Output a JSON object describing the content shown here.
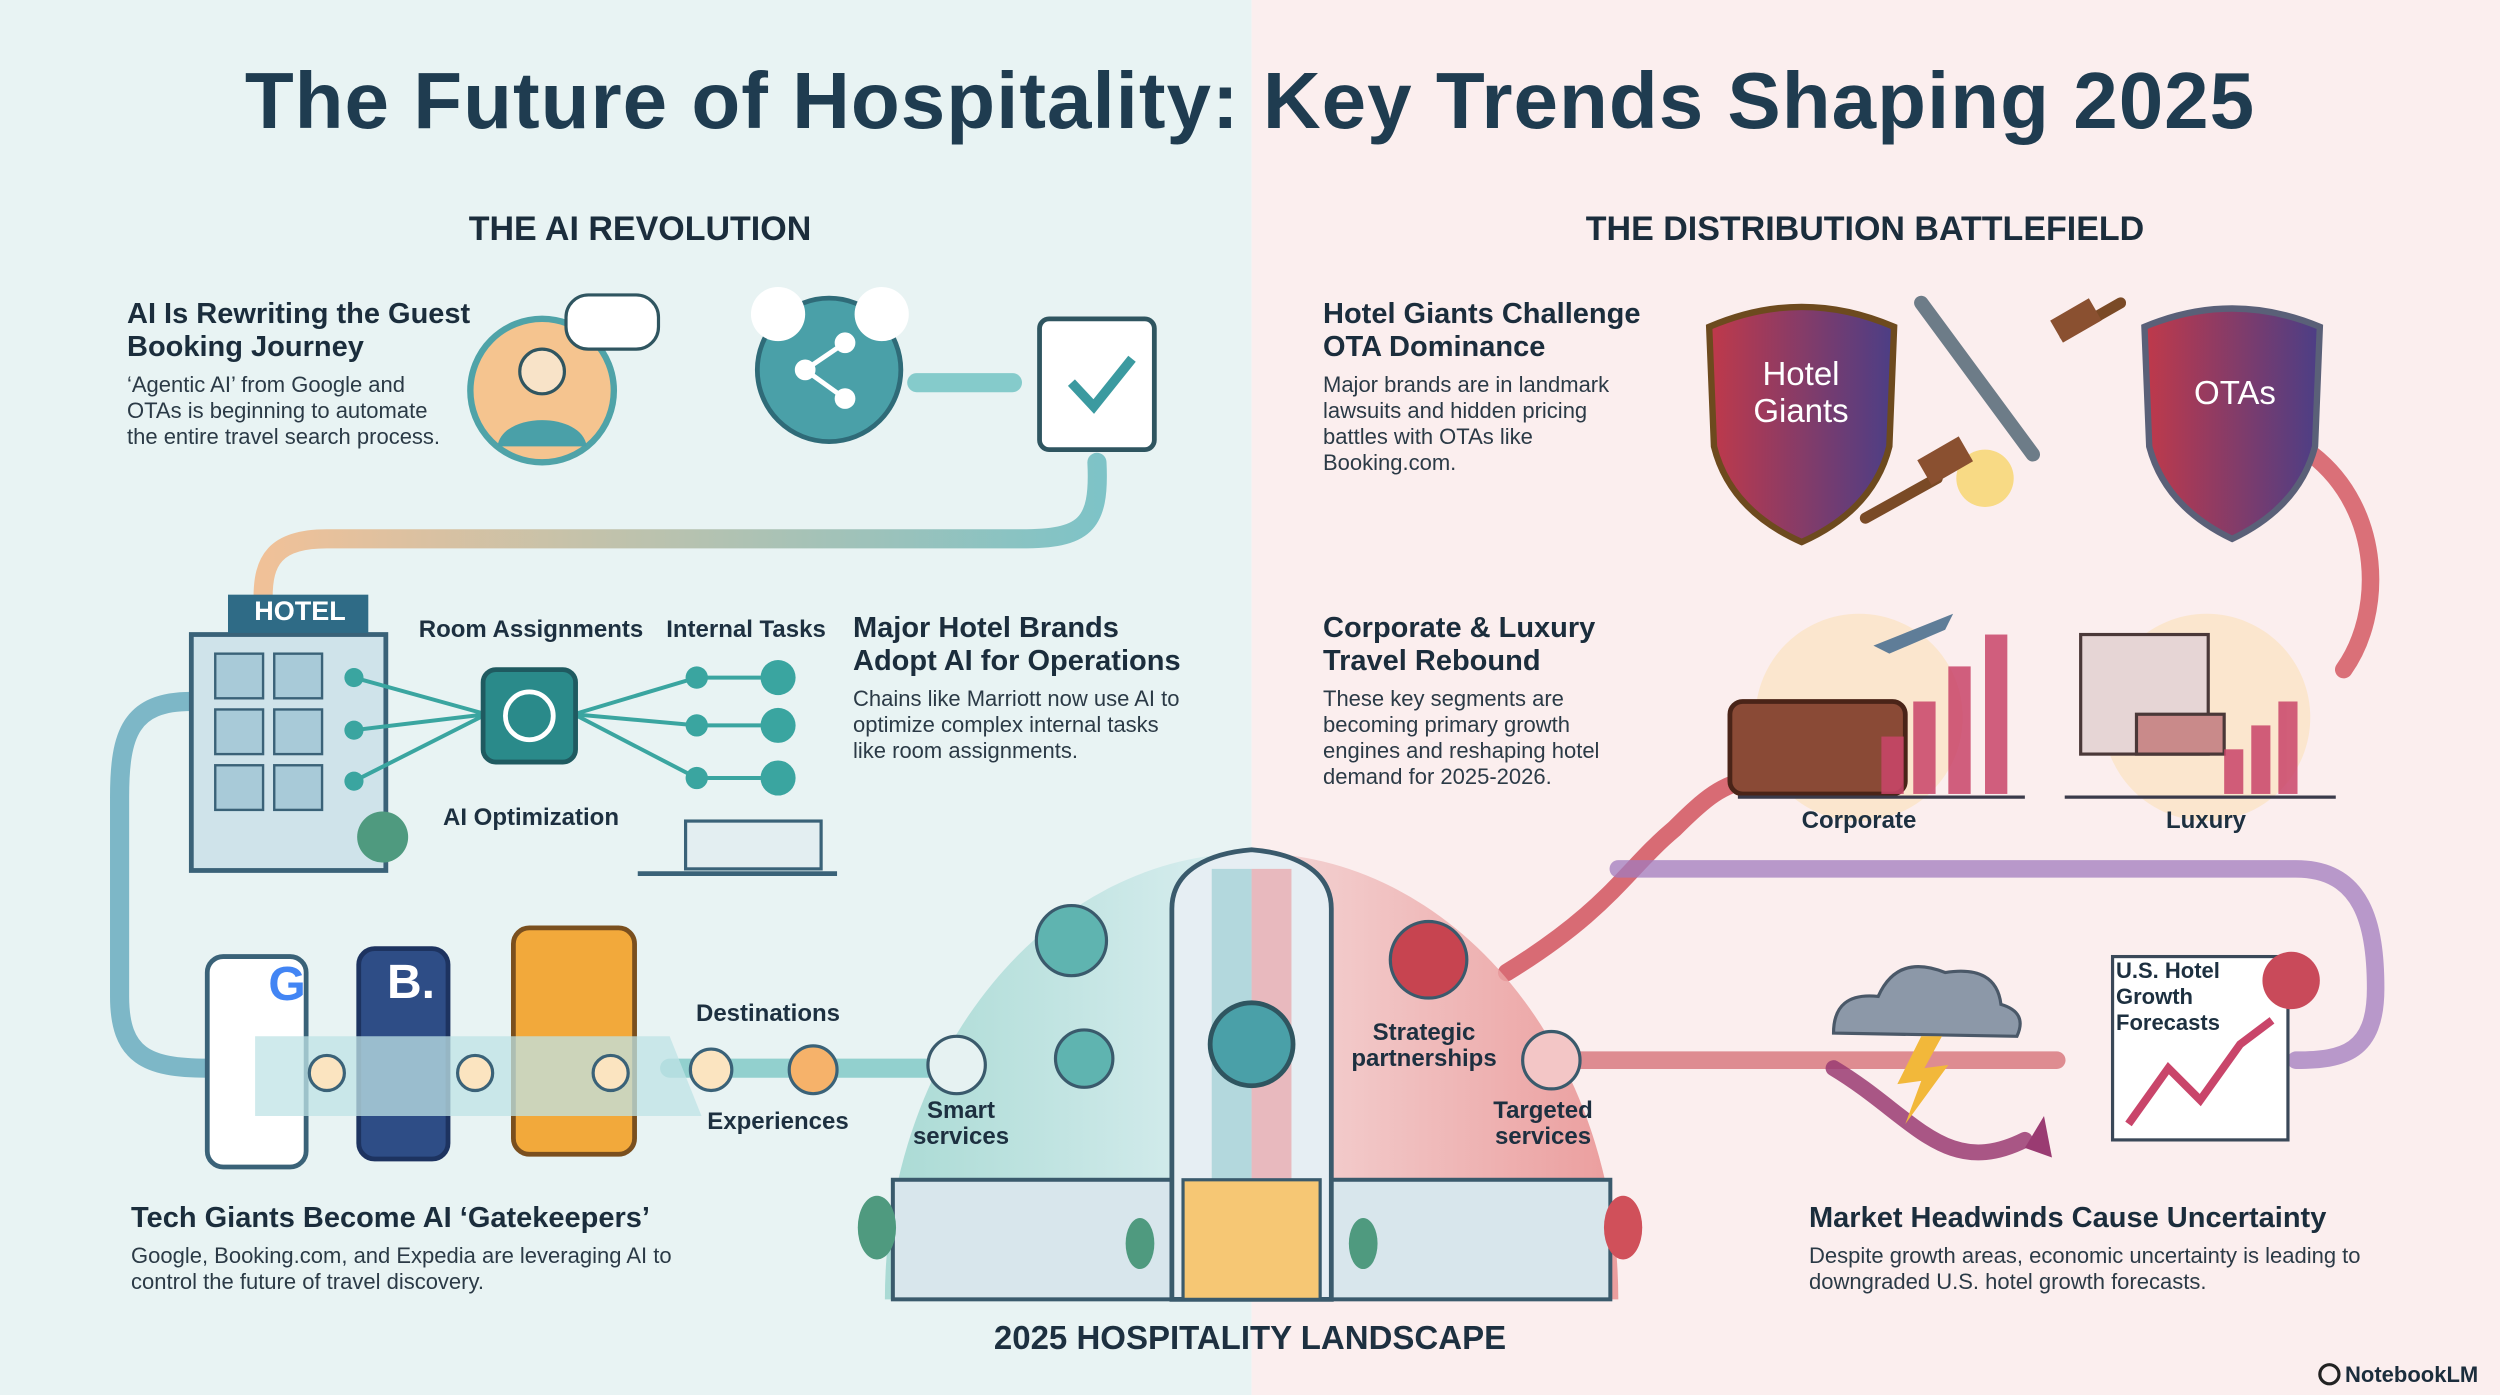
{
  "header": {
    "title": "The Future of Hospitality: Key Trends Shaping 2025"
  },
  "sections": {
    "left": "THE AI REVOLUTION",
    "right": "THE DISTRIBUTION BATTLEFIELD"
  },
  "trends": [
    {
      "heading": "AI Is Rewriting the Guest Booking Journey",
      "body": "‘Agentic AI’ from Google and OTAs is beginning to automate the entire travel search process."
    },
    {
      "heading": "Major Hotel Brands Adopt AI for Operations",
      "body": "Chains like Marriott now use AI to optimize complex internal tasks like room assignments."
    },
    {
      "heading": "Tech Giants Become AI ‘Gatekeepers’",
      "body": "Google, Booking.com, and Expedia are leveraging AI to control the future of travel discovery."
    },
    {
      "heading": "Hotel Giants Challenge OTA Dominance",
      "body": "Major brands are in landmark lawsuits and hidden pricing battles with OTAs like Booking.com."
    },
    {
      "heading": "Corporate & Luxury Travel Rebound",
      "body": "These key segments are becoming primary growth engines and reshaping hotel demand for 2025-2026."
    },
    {
      "heading": "Market Headwinds Cause Uncertainty",
      "body": "Despite growth areas, economic uncertainty is leading to downgraded U.S. hotel growth forecasts."
    }
  ],
  "labels": {
    "hotel": "HOTEL",
    "room_assignments": "Room Assignments",
    "internal_tasks": "Internal Tasks",
    "ai_optimization": "AI Optimization",
    "destinations": "Destinations",
    "experiences": "Experiences",
    "smart_services": "Smart services",
    "strategic_partnerships": "Strategic partnerships",
    "targeted_services": "Targeted services",
    "hotel_giants": "Hotel Giants",
    "otas": "OTAs",
    "corporate": "Corporate",
    "luxury": "Luxury",
    "forecasts": "U.S. Hotel Growth Forecasts",
    "google_logo": "G",
    "booking_logo": "B."
  },
  "footer": {
    "landscape": "2025 HOSPITALITY LANDSCAPE",
    "brand": "NotebookLM"
  }
}
